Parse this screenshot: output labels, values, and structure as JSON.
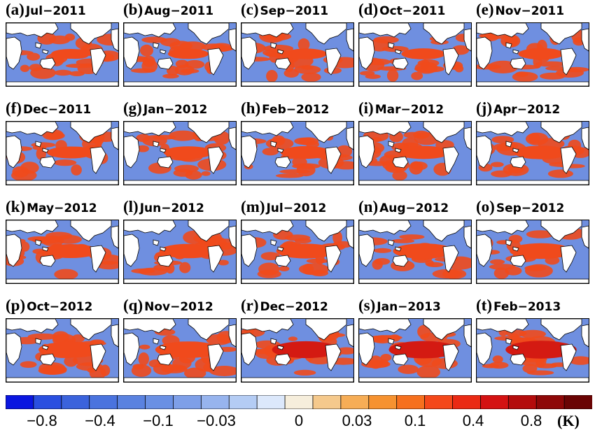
{
  "panels": [
    {
      "letter": "(a)",
      "month": "Jul−2011"
    },
    {
      "letter": "(b)",
      "month": "Aug−2011"
    },
    {
      "letter": "(c)",
      "month": "Sep−2011"
    },
    {
      "letter": "(d)",
      "month": "Oct−2011"
    },
    {
      "letter": "(e)",
      "month": "Nov−2011"
    },
    {
      "letter": "(f)",
      "month": "Dec−2011"
    },
    {
      "letter": "(g)",
      "month": "Jan−2012"
    },
    {
      "letter": "(h)",
      "month": "Feb−2012"
    },
    {
      "letter": "(i)",
      "month": "Mar−2012"
    },
    {
      "letter": "(j)",
      "month": "Apr−2012"
    },
    {
      "letter": "(k)",
      "month": "May−2012"
    },
    {
      "letter": "(l)",
      "month": "Jun−2012"
    },
    {
      "letter": "(m)",
      "month": "Jul−2012"
    },
    {
      "letter": "(n)",
      "month": "Aug−2012"
    },
    {
      "letter": "(o)",
      "month": "Sep−2012"
    },
    {
      "letter": "(p)",
      "month": "Oct−2012"
    },
    {
      "letter": "(q)",
      "month": "Nov−2012"
    },
    {
      "letter": "(r)",
      "month": "Dec−2012"
    },
    {
      "letter": "(s)",
      "month": "Jan−2013"
    },
    {
      "letter": "(t)",
      "month": "Feb−2013"
    }
  ],
  "colorbar": {
    "colors": [
      "#0a16e0",
      "#2a4fe0",
      "#3b63dc",
      "#4a73de",
      "#5a82e0",
      "#6a90e4",
      "#7e9fe8",
      "#97b4ee",
      "#b4ccf4",
      "#dce8fb",
      "#f6eedc",
      "#f5c98c",
      "#f6ad56",
      "#f69230",
      "#f6701e",
      "#f4481a",
      "#ea2a14",
      "#d41212",
      "#b40c0c",
      "#8e0808",
      "#6a0404"
    ],
    "labels": [
      "−0.8",
      "−0.4",
      "−0.1",
      "−0.03",
      "0",
      "0.03",
      "0.1",
      "0.4",
      "0.8"
    ],
    "unit": "(K)"
  },
  "map_colors": {
    "ocean_negative": "#6f8fe0",
    "ocean_positive": "#f04a1c",
    "ocean_strong": "#d41a12",
    "land": "#ffffff",
    "coast": "#000000"
  }
}
